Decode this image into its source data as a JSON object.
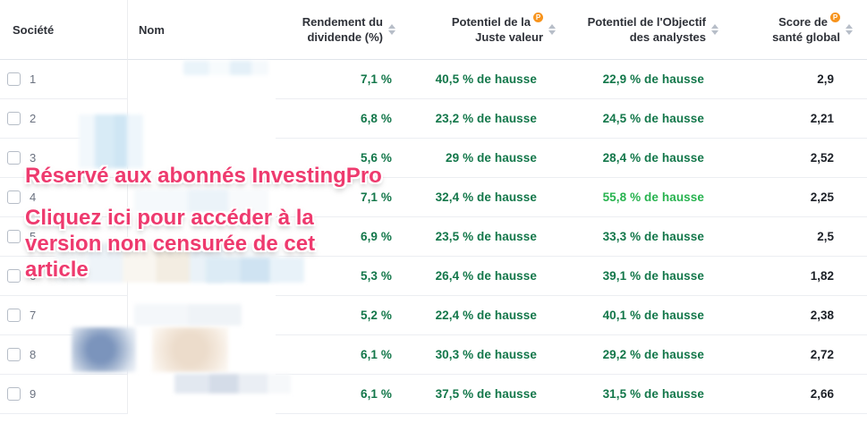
{
  "header": {
    "col_societe": "Société",
    "col_nom": "Nom",
    "col_dividend_line1": "Rendement du",
    "col_dividend_line2": "dividende (%)",
    "col_fair_value_line1": "Potentiel de la",
    "col_fair_value_line2": "Juste valeur",
    "col_analyst_line1": "Potentiel de l'Objectif",
    "col_analyst_line2": "des analystes",
    "col_health_line1": "Score de",
    "col_health_line2": "santé global",
    "pro_badge": "P"
  },
  "rows": [
    {
      "num": "1",
      "dividend_yield": "7,1 %",
      "fair_value_upside": "40,5 % de hausse",
      "analyst_target_upside": "22,9 % de hausse",
      "health_score": "2,9"
    },
    {
      "num": "2",
      "dividend_yield": "6,8 %",
      "fair_value_upside": "23,2 % de hausse",
      "analyst_target_upside": "24,5 % de hausse",
      "health_score": "2,21"
    },
    {
      "num": "3",
      "dividend_yield": "5,6 %",
      "fair_value_upside": "29 % de hausse",
      "analyst_target_upside": "28,4 % de hausse",
      "health_score": "2,52"
    },
    {
      "num": "4",
      "dividend_yield": "7,1 %",
      "fair_value_upside": "32,4 % de hausse",
      "analyst_target_upside": "55,8 % de hausse",
      "health_score": "2,25"
    },
    {
      "num": "5",
      "dividend_yield": "6,9 %",
      "fair_value_upside": "23,5 % de hausse",
      "analyst_target_upside": "33,3 % de hausse",
      "health_score": "2,5"
    },
    {
      "num": "6",
      "dividend_yield": "5,3 %",
      "fair_value_upside": "26,4 % de hausse",
      "analyst_target_upside": "39,1 % de hausse",
      "health_score": "1,82"
    },
    {
      "num": "7",
      "dividend_yield": "5,2 %",
      "fair_value_upside": "22,4 % de hausse",
      "analyst_target_upside": "40,1 % de hausse",
      "health_score": "2,38"
    },
    {
      "num": "8",
      "dividend_yield": "6,1 %",
      "fair_value_upside": "30,3 % de hausse",
      "analyst_target_upside": "29,2 % de hausse",
      "health_score": "2,72"
    },
    {
      "num": "9",
      "dividend_yield": "6,1 %",
      "fair_value_upside": "37,5 % de hausse",
      "analyst_target_upside": "31,5 % de hausse",
      "health_score": "2,66"
    }
  ],
  "overlay": {
    "title": "Réservé aux abonnés InvestingPro",
    "cta_lines": [
      "Cliquez ici pour accéder à la",
      "version non censurée de cet",
      "article"
    ]
  },
  "colors": {
    "value_green": "#13774a",
    "value_green_bright": "#27b34f",
    "paywall_pink": "#ee3a6e",
    "pro_badge_orange": "#f7941e"
  }
}
